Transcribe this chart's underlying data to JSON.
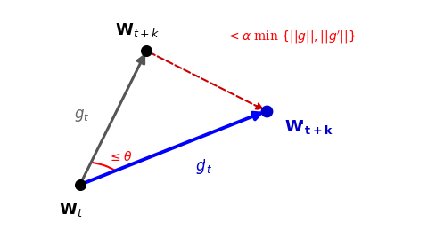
{
  "background_color": "#ffffff",
  "Wt": [
    0.18,
    0.2
  ],
  "Wtk": [
    0.33,
    0.78
  ],
  "Wprime_tk": [
    0.6,
    0.52
  ],
  "arrow_gt_color": "#555555",
  "arrow_gprime_color": "#0000ff",
  "arrow_dashed_color": "#cc0000",
  "dot_black_size": 70,
  "dot_blue_size": 80,
  "label_Wt": "$\\mathbf{W}_t$",
  "label_Wtk": "$\\mathbf{W}_{t+k}$",
  "label_Wprime_tk": "$\\mathbf{W\\!'_{t+k}}$",
  "label_gt": "$g_t$",
  "label_gprime_t": "$g\\!'_t$",
  "label_theta": "$\\leq\\theta$",
  "label_bound": "$< \\alpha$ min $\\{||g||, ||g'||\\}$",
  "figsize": [
    4.98,
    2.6
  ],
  "dpi": 100
}
